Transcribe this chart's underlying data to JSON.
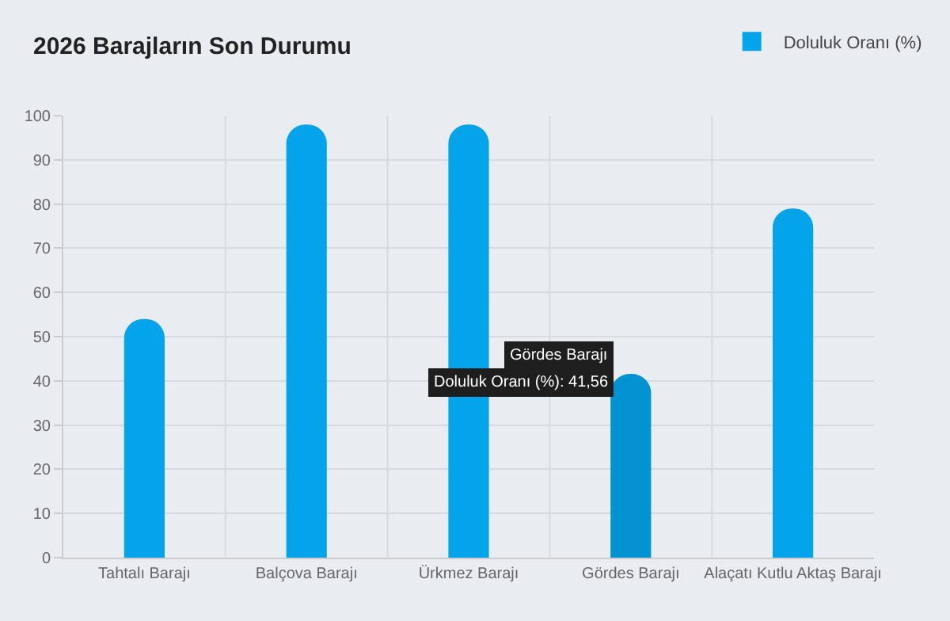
{
  "chart_data": {
    "type": "bar",
    "title": "2026 Barajların Son Durumu",
    "categories": [
      "Tahtalı Barajı",
      "Balçova Barajı",
      "Ürkmez Barajı",
      "Gördes Barajı",
      "Alaçatı Kutlu Aktaş Barajı"
    ],
    "series": [
      {
        "name": "Doluluk Oranı (%)",
        "color": "#03a4ea",
        "colors": [
          "#03a4ea",
          "#03a4ea",
          "#03a4ea",
          "#0293d2",
          "#03a4ea"
        ],
        "values": [
          54,
          98,
          98,
          41.56,
          79
        ]
      }
    ],
    "ylim": [
      0,
      100
    ],
    "yticks": [
      0,
      10,
      20,
      30,
      40,
      50,
      60,
      70,
      80,
      90,
      100
    ],
    "grid": true,
    "legend": "top right",
    "annotations": [
      {
        "text": "Gördes Barajı",
        "x": "Gördes Barajı",
        "y": 41.56
      },
      {
        "text": "Doluluk Oranı (%): 41,56",
        "x": "Gördes Barajı",
        "y": 41.56
      }
    ]
  }
}
